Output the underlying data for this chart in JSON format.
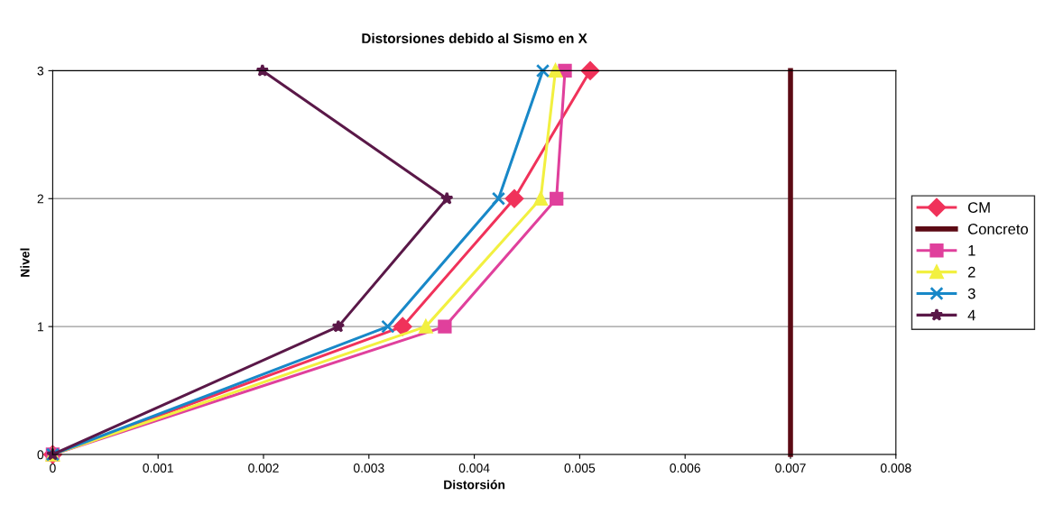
{
  "chart_data": {
    "type": "line",
    "title": "Distorsiones debido al Sismo en X",
    "xlabel": "Distorsión",
    "ylabel": "Nivel",
    "xlim": [
      0,
      0.008
    ],
    "xticks": [
      0,
      0.001,
      0.002,
      0.003,
      0.004,
      0.005,
      0.006,
      0.007,
      0.008
    ],
    "ylim": [
      0,
      3
    ],
    "yticks": [
      0,
      1,
      2,
      3
    ],
    "grid": "y",
    "legend": "right",
    "series": [
      {
        "name": "CM",
        "color": "#f0325a",
        "marker": "diamond",
        "x": [
          0,
          0.00332,
          0.00438,
          0.0051
        ],
        "values": [
          0,
          1,
          2,
          3
        ]
      },
      {
        "name": "Concreto",
        "color": "#5c0a14",
        "marker": "none",
        "x": [
          0.007,
          0.007
        ],
        "values": [
          0,
          3
        ]
      },
      {
        "name": "1",
        "color": "#e0409c",
        "marker": "square",
        "x": [
          0,
          0.00372,
          0.00478,
          0.00486
        ],
        "values": [
          0,
          1,
          2,
          3
        ]
      },
      {
        "name": "2",
        "color": "#f2f040",
        "marker": "triangle",
        "x": [
          0,
          0.00354,
          0.00463,
          0.00477
        ],
        "values": [
          0,
          1,
          2,
          3
        ]
      },
      {
        "name": "3",
        "color": "#1888c8",
        "marker": "cross",
        "x": [
          0,
          0.00318,
          0.00423,
          0.00465
        ],
        "values": [
          0,
          1,
          2,
          3
        ]
      },
      {
        "name": "4",
        "color": "#5a1848",
        "marker": "star",
        "x": [
          0,
          0.00271,
          0.00374,
          0.00199
        ],
        "values": [
          0,
          1,
          2,
          3
        ]
      }
    ]
  }
}
